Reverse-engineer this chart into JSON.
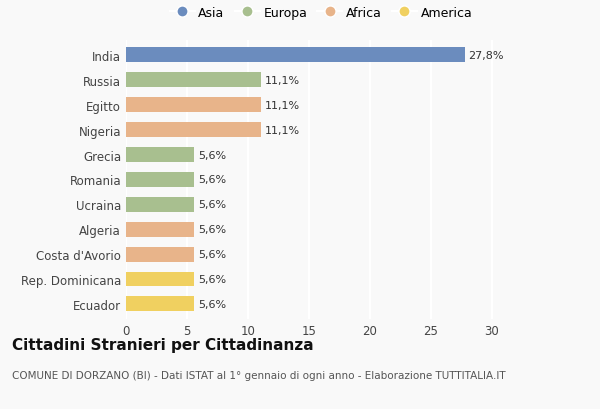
{
  "countries": [
    "India",
    "Russia",
    "Egitto",
    "Nigeria",
    "Grecia",
    "Romania",
    "Ucraina",
    "Algeria",
    "Costa d'Avorio",
    "Rep. Dominicana",
    "Ecuador"
  ],
  "values": [
    27.8,
    11.1,
    11.1,
    11.1,
    5.6,
    5.6,
    5.6,
    5.6,
    5.6,
    5.6,
    5.6
  ],
  "labels": [
    "27,8%",
    "11,1%",
    "11,1%",
    "11,1%",
    "5,6%",
    "5,6%",
    "5,6%",
    "5,6%",
    "5,6%",
    "5,6%",
    "5,6%"
  ],
  "continents": [
    "Asia",
    "Europa",
    "Africa",
    "Africa",
    "Europa",
    "Europa",
    "Europa",
    "Africa",
    "Africa",
    "America",
    "America"
  ],
  "colors": {
    "Asia": "#6b8cbe",
    "Europa": "#a8bf8f",
    "Africa": "#e8b48a",
    "America": "#f0d060"
  },
  "legend_order": [
    "Asia",
    "Europa",
    "Africa",
    "America"
  ],
  "title": "Cittadini Stranieri per Cittadinanza",
  "subtitle": "COMUNE DI DORZANO (BI) - Dati ISTAT al 1° gennaio di ogni anno - Elaborazione TUTTITALIA.IT",
  "xlim": [
    0,
    32
  ],
  "xticks": [
    0,
    5,
    10,
    15,
    20,
    25,
    30
  ],
  "background_color": "#f9f9f9",
  "grid_color": "#ffffff",
  "bar_height": 0.6,
  "title_fontsize": 11,
  "subtitle_fontsize": 7.5,
  "label_fontsize": 8,
  "tick_fontsize": 8.5,
  "legend_fontsize": 9
}
